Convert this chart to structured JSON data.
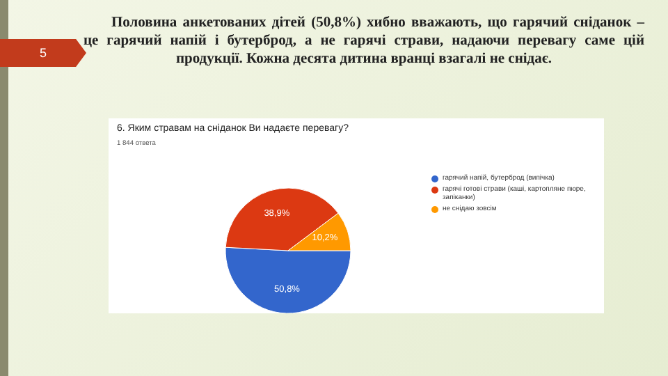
{
  "chart_data": {
    "type": "pie",
    "title": "6. Яким стравам на сніданок Ви надаєте перевагу?",
    "subtitle": "1 844 ответа",
    "annotations": [
      "Половина анкетованих дітей (50,8%) хибно вважають, що гарячий сніданок – це гарячий напій і бутерброд, а не гарячі страви, надаючи перевагу саме цій продукції. Кожна десята дитина вранці взагалі не снідає.",
      "5"
    ],
    "categories": [
      "гарячий напій, бутерброд (випічка)",
      "гарячі готові страви (каші, картопляне пюре, запіканки)",
      "не снідаю зовсім"
    ],
    "values": [
      50.8,
      38.9,
      10.2
    ],
    "colors": [
      "#3366cc",
      "#dc3912",
      "#ff9900"
    ],
    "value_labels": [
      "50,8%",
      "38,9%",
      "10,2%"
    ],
    "legend": "right"
  }
}
